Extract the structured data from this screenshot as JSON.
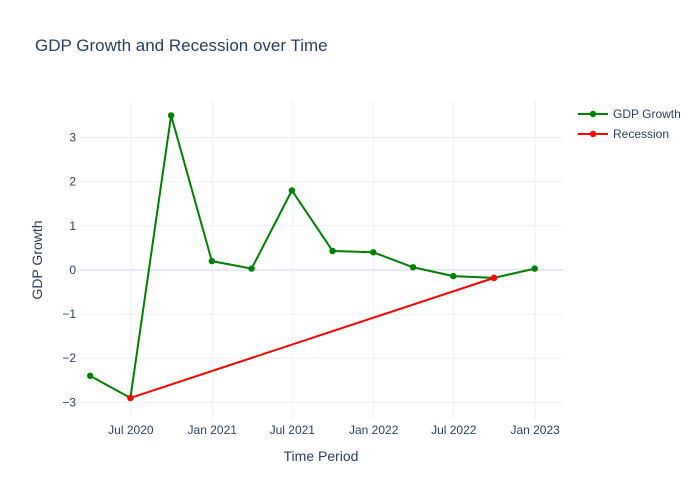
{
  "chart_data": {
    "type": "line",
    "title": "GDP Growth and Recession over Time",
    "xlabel": "Time Period",
    "ylabel": "GDP Growth",
    "x_tick_labels": [
      {
        "date": "2020-07-01",
        "label": "Jul 2020"
      },
      {
        "date": "2021-01-01",
        "label": "Jan 2021"
      },
      {
        "date": "2021-07-01",
        "label": "Jul 2021"
      },
      {
        "date": "2022-01-01",
        "label": "Jan 2022"
      },
      {
        "date": "2022-07-01",
        "label": "Jul 2022"
      },
      {
        "date": "2023-01-01",
        "label": "Jan 2023"
      }
    ],
    "y_ticks": [
      -3,
      -2,
      -1,
      0,
      1,
      2,
      3
    ],
    "y_tick_labels": [
      "−3",
      "−2",
      "−1",
      "0",
      "1",
      "2",
      "3"
    ],
    "xlim": [
      "2020-03-08",
      "2023-03-05"
    ],
    "ylim": [
      -3.4,
      3.85
    ],
    "grid": true,
    "legend_position": "top-right",
    "series": [
      {
        "name": "GDP Growth",
        "color": "#008000",
        "points": [
          {
            "x": "2020-03-31",
            "y": -2.4
          },
          {
            "x": "2020-06-30",
            "y": -2.9
          },
          {
            "x": "2020-09-30",
            "y": 3.5
          },
          {
            "x": "2020-12-31",
            "y": 0.2
          },
          {
            "x": "2021-03-31",
            "y": 0.03
          },
          {
            "x": "2021-06-30",
            "y": 1.8
          },
          {
            "x": "2021-09-30",
            "y": 0.43
          },
          {
            "x": "2021-12-31",
            "y": 0.4
          },
          {
            "x": "2022-03-31",
            "y": 0.06
          },
          {
            "x": "2022-06-30",
            "y": -0.14
          },
          {
            "x": "2022-09-30",
            "y": -0.18
          },
          {
            "x": "2022-12-31",
            "y": 0.03
          }
        ]
      },
      {
        "name": "Recession",
        "color": "#ff0000",
        "points": [
          {
            "x": "2020-06-30",
            "y": -2.9
          },
          {
            "x": "2022-09-30",
            "y": -0.18
          }
        ]
      }
    ]
  }
}
